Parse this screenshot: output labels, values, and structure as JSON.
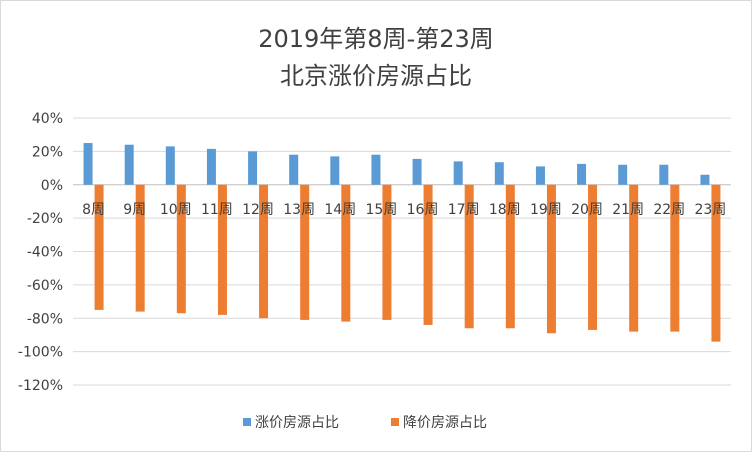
{
  "chart_data": {
    "type": "bar",
    "title": "2019年第8周-第23周",
    "subtitle": "北京涨价房源占比",
    "categories": [
      "8周",
      "9周",
      "10周",
      "11周",
      "12周",
      "13周",
      "14周",
      "15周",
      "16周",
      "17周",
      "18周",
      "19周",
      "20周",
      "21周",
      "22周",
      "23周"
    ],
    "series": [
      {
        "name": "涨价房源占比",
        "color": "#5b9bd5",
        "values": [
          25,
          24,
          23,
          21.5,
          20,
          18,
          17,
          18,
          15.5,
          14,
          13.5,
          11,
          12.5,
          12,
          12,
          6
        ]
      },
      {
        "name": "降价房源占比",
        "color": "#ed7d31",
        "values": [
          -75,
          -76,
          -77,
          -78,
          -80,
          -81,
          -82,
          -81,
          -84,
          -86,
          -86,
          -89,
          -87,
          -88,
          -88,
          -94
        ]
      }
    ],
    "yticks": [
      "40%",
      "20%",
      "0%",
      "-20%",
      "-40%",
      "-60%",
      "-80%",
      "-100%",
      "-120%"
    ],
    "ylim": [
      -120,
      40
    ],
    "grid": true,
    "legend": "bottom"
  }
}
